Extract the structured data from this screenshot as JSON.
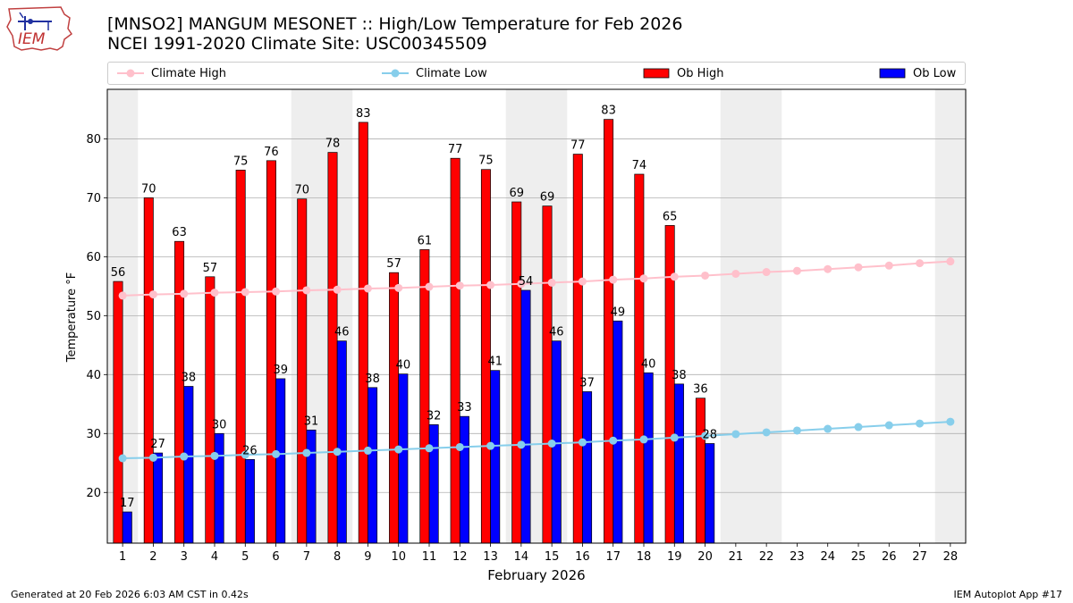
{
  "logo": {
    "text": "IEM"
  },
  "header": {
    "title_line1": "[MNSO2] MANGUM MESONET :: High/Low Temperature for Feb 2026",
    "title_line2": "NCEI 1991-2020 Climate Site: USC00345509"
  },
  "footer": {
    "generated": "Generated at 20 Feb 2026 6:03 AM CST in 0.42s",
    "app": "IEM Autoplot App #17"
  },
  "chart_data": {
    "type": "bar",
    "title": "[MNSO2] MANGUM MESONET :: High/Low Temperature for Feb 2026",
    "subtitle": "NCEI 1991-2020 Climate Site: USC00345509",
    "xlabel": "February 2026",
    "ylabel": "Temperature °F",
    "xlim": [
      0.5,
      28.5
    ],
    "ylim": [
      11.4,
      88.4
    ],
    "yticks": [
      20,
      30,
      40,
      50,
      60,
      70,
      80
    ],
    "days": [
      1,
      2,
      3,
      4,
      5,
      6,
      7,
      8,
      9,
      10,
      11,
      12,
      13,
      14,
      15,
      16,
      17,
      18,
      19,
      20,
      21,
      22,
      23,
      24,
      25,
      26,
      27,
      28
    ],
    "weekend_days": [
      1,
      7,
      8,
      14,
      15,
      21,
      22,
      28
    ],
    "grid": "horizontal",
    "legend_placement": "top",
    "series": [
      {
        "name": "Climate High",
        "kind": "line",
        "color": "#ffc0cb",
        "values": [
          53.4,
          53.6,
          53.7,
          53.9,
          54.0,
          54.1,
          54.3,
          54.4,
          54.6,
          54.7,
          54.9,
          55.1,
          55.2,
          55.4,
          55.6,
          55.8,
          56.1,
          56.3,
          56.6,
          56.8,
          57.1,
          57.4,
          57.6,
          57.9,
          58.2,
          58.5,
          58.9,
          59.2
        ]
      },
      {
        "name": "Climate Low",
        "kind": "line",
        "color": "#87ceeb",
        "values": [
          25.8,
          25.9,
          26.1,
          26.2,
          26.4,
          26.5,
          26.7,
          26.9,
          27.1,
          27.3,
          27.5,
          27.7,
          27.9,
          28.1,
          28.3,
          28.5,
          28.8,
          29.0,
          29.3,
          29.6,
          29.9,
          30.2,
          30.5,
          30.8,
          31.1,
          31.4,
          31.7,
          32.0
        ]
      },
      {
        "name": "Ob High",
        "kind": "bar",
        "color": "#ff0000",
        "values": [
          55.8,
          70.0,
          62.6,
          56.6,
          74.7,
          76.3,
          69.8,
          77.7,
          82.8,
          57.3,
          61.2,
          76.7,
          74.8,
          69.3,
          68.6,
          77.4,
          83.3,
          74.0,
          65.3,
          36.0
        ],
        "labels": [
          "56",
          "70",
          "63",
          "57",
          "75",
          "76",
          "70",
          "78",
          "83",
          "57",
          "61",
          "77",
          "75",
          "69",
          "69",
          "77",
          "83",
          "74",
          "65",
          "36"
        ]
      },
      {
        "name": "Ob Low",
        "kind": "bar",
        "color": "#0000ff",
        "values": [
          16.7,
          26.7,
          38.0,
          30.0,
          25.6,
          39.3,
          30.6,
          45.7,
          37.8,
          40.1,
          31.5,
          32.9,
          40.7,
          54.3,
          45.7,
          37.1,
          49.1,
          40.3,
          38.4,
          28.3
        ],
        "labels": [
          "17",
          "27",
          "38",
          "30",
          "26",
          "39",
          "31",
          "46",
          "38",
          "40",
          "32",
          "33",
          "41",
          "54",
          "46",
          "37",
          "49",
          "40",
          "38",
          "28"
        ]
      }
    ]
  }
}
